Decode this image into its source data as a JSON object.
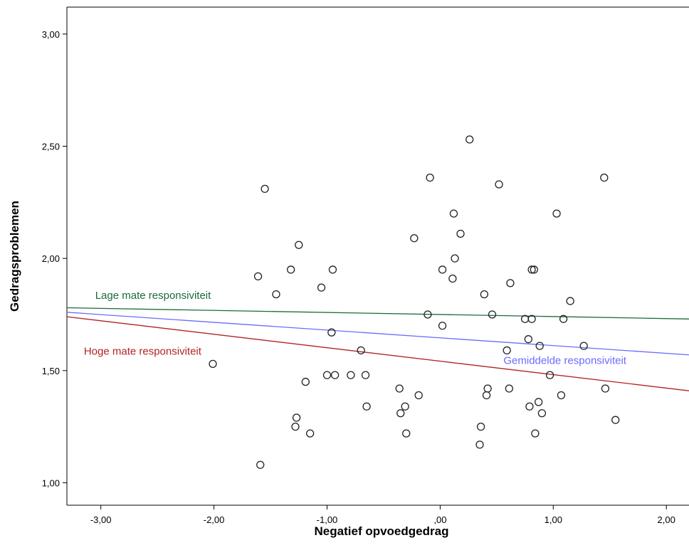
{
  "chart_data": {
    "type": "scatter",
    "xlabel": "Negatief opvoedgedrag",
    "ylabel": "Gedragsproblemen",
    "xlim": [
      -3.3,
      2.2
    ],
    "ylim": [
      0.9,
      3.12
    ],
    "xticks": [
      -3.0,
      -2.0,
      -1.0,
      0.0,
      1.0,
      2.0
    ],
    "xtick_labels": [
      "-3,00",
      "-2,00",
      "-1,00",
      ",00",
      "1,00",
      "2,00"
    ],
    "yticks": [
      1.0,
      1.5,
      2.0,
      2.5,
      3.0
    ],
    "ytick_labels": [
      "1,00",
      "1,50",
      "2,00",
      "2,50",
      "3,00"
    ],
    "grid": false,
    "points": [
      {
        "x": -2.01,
        "y": 1.53
      },
      {
        "x": -1.61,
        "y": 1.92
      },
      {
        "x": -1.59,
        "y": 1.08
      },
      {
        "x": -1.55,
        "y": 2.31
      },
      {
        "x": -1.45,
        "y": 1.84
      },
      {
        "x": -1.32,
        "y": 1.95
      },
      {
        "x": -1.28,
        "y": 1.25
      },
      {
        "x": -1.27,
        "y": 1.29
      },
      {
        "x": -1.25,
        "y": 2.06
      },
      {
        "x": -1.19,
        "y": 1.45
      },
      {
        "x": -1.15,
        "y": 1.22
      },
      {
        "x": -1.05,
        "y": 1.87
      },
      {
        "x": -1.0,
        "y": 1.48
      },
      {
        "x": -0.96,
        "y": 1.67
      },
      {
        "x": -0.95,
        "y": 1.95
      },
      {
        "x": -0.93,
        "y": 1.48
      },
      {
        "x": -0.79,
        "y": 1.48
      },
      {
        "x": -0.7,
        "y": 1.59
      },
      {
        "x": -0.66,
        "y": 1.48
      },
      {
        "x": -0.65,
        "y": 1.34
      },
      {
        "x": -0.36,
        "y": 1.42
      },
      {
        "x": -0.35,
        "y": 1.31
      },
      {
        "x": -0.31,
        "y": 1.34
      },
      {
        "x": -0.3,
        "y": 1.22
      },
      {
        "x": -0.23,
        "y": 2.09
      },
      {
        "x": -0.19,
        "y": 1.39
      },
      {
        "x": -0.11,
        "y": 1.75
      },
      {
        "x": -0.09,
        "y": 2.36
      },
      {
        "x": 0.02,
        "y": 1.7
      },
      {
        "x": 0.02,
        "y": 1.95
      },
      {
        "x": 0.11,
        "y": 1.91
      },
      {
        "x": 0.12,
        "y": 2.2
      },
      {
        "x": 0.13,
        "y": 2.0
      },
      {
        "x": 0.18,
        "y": 2.11
      },
      {
        "x": 0.26,
        "y": 2.53
      },
      {
        "x": 0.35,
        "y": 1.17
      },
      {
        "x": 0.36,
        "y": 1.25
      },
      {
        "x": 0.39,
        "y": 1.84
      },
      {
        "x": 0.41,
        "y": 1.39
      },
      {
        "x": 0.42,
        "y": 1.42
      },
      {
        "x": 0.46,
        "y": 1.75
      },
      {
        "x": 0.52,
        "y": 2.33
      },
      {
        "x": 0.59,
        "y": 1.59
      },
      {
        "x": 0.61,
        "y": 1.42
      },
      {
        "x": 0.62,
        "y": 1.89
      },
      {
        "x": 0.75,
        "y": 1.73
      },
      {
        "x": 0.78,
        "y": 1.64
      },
      {
        "x": 0.79,
        "y": 1.34
      },
      {
        "x": 0.81,
        "y": 1.73
      },
      {
        "x": 0.81,
        "y": 1.95
      },
      {
        "x": 0.83,
        "y": 1.95
      },
      {
        "x": 0.84,
        "y": 1.22
      },
      {
        "x": 0.87,
        "y": 1.36
      },
      {
        "x": 0.88,
        "y": 1.61
      },
      {
        "x": 0.9,
        "y": 1.31
      },
      {
        "x": 0.97,
        "y": 1.48
      },
      {
        "x": 1.03,
        "y": 2.2
      },
      {
        "x": 1.07,
        "y": 1.39
      },
      {
        "x": 1.09,
        "y": 1.73
      },
      {
        "x": 1.15,
        "y": 1.81
      },
      {
        "x": 1.27,
        "y": 1.61
      },
      {
        "x": 1.45,
        "y": 2.36
      },
      {
        "x": 1.46,
        "y": 1.42
      },
      {
        "x": 1.55,
        "y": 1.28
      }
    ],
    "series": [
      {
        "name": "Lage mate responsiviteit",
        "color": "#1a6b3a",
        "x": [
          -3.3,
          2.2
        ],
        "y": [
          1.78,
          1.73
        ]
      },
      {
        "name": "Gemiddelde responsiviteit",
        "color": "#6b6bff",
        "x": [
          -3.3,
          2.2
        ],
        "y": [
          1.76,
          1.57
        ]
      },
      {
        "name": "Hoge mate responsiviteit",
        "color": "#b22222",
        "x": [
          -3.3,
          2.2
        ],
        "y": [
          1.74,
          1.41
        ]
      }
    ],
    "annotations": [
      {
        "text": "Lage mate responsiviteit",
        "series": 0,
        "x": -3.05,
        "y": 1.82
      },
      {
        "text": "Hoge mate responsiviteit",
        "series": 2,
        "x": -3.15,
        "y": 1.57
      },
      {
        "text": "Gemiddelde responsiviteit",
        "series": 1,
        "x": 0.56,
        "y": 1.53
      }
    ]
  }
}
